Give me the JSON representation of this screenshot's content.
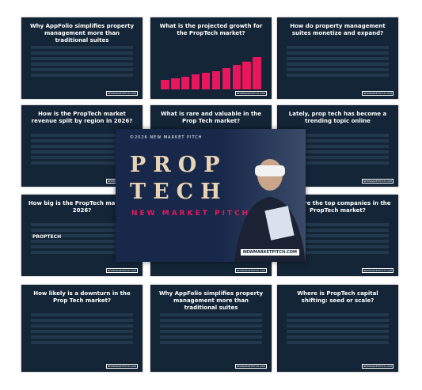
{
  "brand": "©2026 NEW MARKET PITCH",
  "cover": {
    "line1": "PROP",
    "line2": "TECH",
    "subtitle": "NEW MARKET PITCH",
    "site": "NEWMARKETPITCH.COM"
  },
  "footer": "NEWMARKETPITCH.COM",
  "slides": [
    {
      "title": "Why AppFolio simplifies property management more than traditional suites"
    },
    {
      "title": "What is the projected growth for the PropTech market?",
      "chart": {
        "values": [
          3,
          3.5,
          4,
          4.5,
          5,
          5.5,
          6.5,
          7.5,
          8.5,
          10
        ],
        "color": "#e8175d"
      }
    },
    {
      "title": "How do property management suites monetize and expand?"
    },
    {
      "title": "How is the PropTech market revenue split by region in 2026?"
    },
    {
      "title": "What is rare and valuable in the Prop Tech market?"
    },
    {
      "title": "Lately, prop tech has become a trending topic online"
    },
    {
      "title": "How big is the PropTech market in 2026?",
      "label": "PROPTECH"
    },
    {
      "title": ""
    },
    {
      "title": "Who are the top companies in the PropTech market?"
    },
    {
      "title": "How likely is a downturn in the Prop Tech market?"
    },
    {
      "title": "Why AppFolio simplifies property management more than traditional suites"
    },
    {
      "title": "Where is PropTech capital shifting: seed or scale?"
    }
  ]
}
